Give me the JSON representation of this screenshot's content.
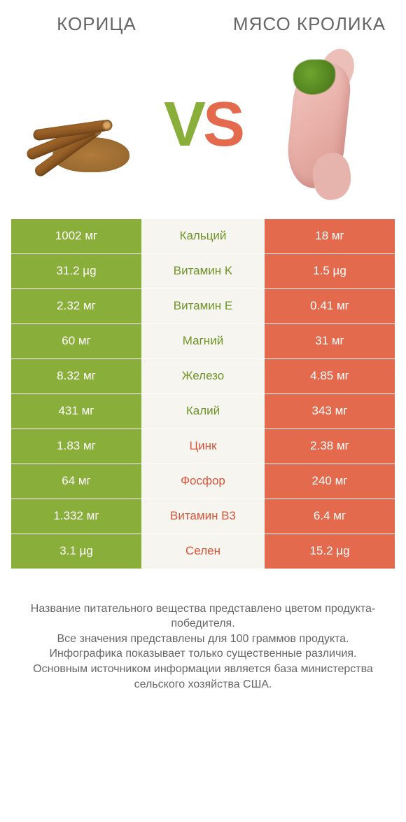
{
  "colors": {
    "green": "#8aae3a",
    "orange": "#e36a4d",
    "green_text": "#6f9427",
    "orange_text": "#d8553a",
    "mid_bg": "#f6f5f0",
    "page_bg": "#ffffff",
    "text": "#666666"
  },
  "titles": {
    "left": "КОРИЦА",
    "right": "МЯСО КРОЛИКА"
  },
  "vs": {
    "v": "V",
    "s": "S"
  },
  "rows": [
    {
      "left": "1002 мг",
      "label": "Кальций",
      "right": "18 мг",
      "winner": "left"
    },
    {
      "left": "31.2 µg",
      "label": "Витамин K",
      "right": "1.5 µg",
      "winner": "left"
    },
    {
      "left": "2.32 мг",
      "label": "Витамин E",
      "right": "0.41 мг",
      "winner": "left"
    },
    {
      "left": "60 мг",
      "label": "Магний",
      "right": "31 мг",
      "winner": "left"
    },
    {
      "left": "8.32 мг",
      "label": "Железо",
      "right": "4.85 мг",
      "winner": "left"
    },
    {
      "left": "431 мг",
      "label": "Калий",
      "right": "343 мг",
      "winner": "left"
    },
    {
      "left": "1.83 мг",
      "label": "Цинк",
      "right": "2.38 мг",
      "winner": "right"
    },
    {
      "left": "64 мг",
      "label": "Фосфор",
      "right": "240 мг",
      "winner": "right"
    },
    {
      "left": "1.332 мг",
      "label": "Витамин B3",
      "right": "6.4 мг",
      "winner": "right"
    },
    {
      "left": "3.1 µg",
      "label": "Селен",
      "right": "15.2 µg",
      "winner": "right"
    }
  ],
  "footer": {
    "l1": "Название питательного вещества представлено цветом продукта-победителя.",
    "l2": "Все значения представлены для 100 граммов продукта.",
    "l3": "Инфографика показывает только существенные различия.",
    "l4": "Основным источником информации является база министерства сельского хозяйства США."
  }
}
